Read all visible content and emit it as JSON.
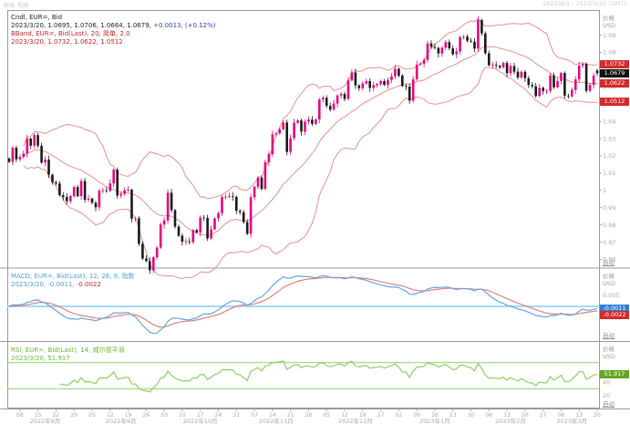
{
  "window": {
    "top_left_label": "图表 视图",
    "top_right_label": "2022/8/3 - 2023/3/20 (GMT)"
  },
  "legends": {
    "candle": {
      "line1": "Cndl, EUR=, Bid",
      "line2_black": "2023/3/20, 1.0695, 1.0706, 1.0664, 1.0679, ",
      "line2_blue": "+0.0013, (+0.12%)",
      "line3": "BBand, EUR=, Bid(Last), 20, 简单, 2.0",
      "line4": "2023/3/20, 1.0732, 1.0622, 1.0512"
    },
    "macd": {
      "line1": "MACD, EUR=, Bid(Last), 12, 26, 9, 指数",
      "line2_blue": "2023/3/20, -0.0011, ",
      "line2_red": "-0.0022"
    },
    "rsi": {
      "line1": "RSI, EUR=, Bid(Last), 14, 威尔德平滑",
      "line2": "2023/3/20, 51.917"
    }
  },
  "axis": {
    "price_header_1": "价格",
    "price_header_2": "USD",
    "auto_label": "自动"
  },
  "badges": {
    "bb_upper": "1.0732",
    "last": "1.0679",
    "bb_mid": "1.0622",
    "bb_lower": "1.0512",
    "macd": "-0.0011",
    "signal": "-0.0022",
    "rsi": "51.917"
  },
  "chart_data": {
    "type": "candlestick",
    "instrument": "EUR=",
    "quote_side": "Bid",
    "interval": "daily",
    "date_range": "2022/8/3 - 2023/3/20 (GMT)",
    "panels": [
      "price+bollinger",
      "macd",
      "rsi"
    ],
    "last_candle": {
      "date": "2023/3/20",
      "open": 1.0695,
      "high": 1.0706,
      "low": 1.0664,
      "close": 1.0679,
      "change": "+0.0013",
      "change_pct": "+0.12%"
    },
    "bollinger": {
      "period": 20,
      "stddev": 2.0,
      "upper": 1.0732,
      "middle": 1.0622,
      "lower": 1.0512,
      "date": "2023/3/20"
    },
    "macd": {
      "fast": 12,
      "slow": 26,
      "signal_period": 9,
      "value": -0.0011,
      "signal": -0.0022,
      "date": "2023/3/20"
    },
    "rsi": {
      "period": 14,
      "value": 51.917,
      "levels": [
        70,
        30
      ],
      "date": "2023/3/20"
    },
    "closes": [
      1.0165,
      1.0247,
      1.018,
      1.0193,
      1.0213,
      1.03,
      1.0259,
      1.032,
      1.0259,
      1.0161,
      1.0178,
      1.009,
      1.0047,
      1.004,
      0.9972,
      0.9962,
      0.9937,
      0.9967,
      1.0019,
      0.9966,
      1.0054,
      0.9945,
      0.9952,
      0.9928,
      0.9902,
      0.9998,
      1.0,
      0.9997,
      1.004,
      1.012,
      0.997,
      0.9979,
      0.9999,
      1.0004,
      0.9836,
      0.9838,
      0.969,
      0.9605,
      0.959,
      0.9536,
      0.9612,
      0.9668,
      0.9802,
      0.9826,
      0.9986,
      0.9885,
      0.979,
      0.9737,
      0.9702,
      0.9705,
      0.97,
      0.977,
      0.9756,
      0.9842,
      0.984,
      0.9721,
      0.9774,
      0.9837,
      0.9867,
      0.9961,
      0.9963,
      0.9966,
      0.9962,
      0.9881,
      0.9873,
      0.9816,
      0.9748,
      0.996,
      1.0021,
      1.0074,
      1.0009,
      1.0163,
      1.021,
      1.0325,
      1.0331,
      1.0354,
      1.0393,
      1.0223,
      1.0302,
      1.0392,
      1.0405,
      1.034,
      1.0398,
      1.041,
      1.0385,
      1.0411,
      1.0527,
      1.0537,
      1.049,
      1.0468,
      1.0503,
      1.055,
      1.0559,
      1.053,
      1.0637,
      1.0683,
      1.0608,
      1.0592,
      1.062,
      1.0633,
      1.0594,
      1.061,
      1.0617,
      1.0633,
      1.0612,
      1.064,
      1.0661,
      1.0705,
      1.0665,
      1.0605,
      1.0602,
      1.052,
      1.0644,
      1.0729,
      1.0734,
      1.0756,
      1.0852,
      1.0832,
      1.0826,
      1.0793,
      1.0827,
      1.0859,
      1.0823,
      1.0789,
      1.0805,
      1.0889,
      1.0891,
      1.0867,
      1.0862,
      1.0822,
      1.0987,
      1.091,
      1.0795,
      1.0725,
      1.0727,
      1.0722,
      1.0713,
      1.0738,
      1.0679,
      1.0721,
      1.0688,
      1.0654,
      1.0687,
      1.065,
      1.0611,
      1.0603,
      1.0547,
      1.0595,
      1.0576,
      1.0577,
      1.0665,
      1.0597,
      1.0634,
      1.068,
      1.0549,
      1.0545,
      1.0582,
      1.0643,
      1.0724,
      1.0733,
      1.0577,
      1.0611,
      1.0665,
      1.0679
    ],
    "price_axis": {
      "min": 0.956,
      "max": 1.104,
      "ticks": [
        [
          1.09,
          "1.09"
        ],
        [
          1.08,
          "1.08"
        ],
        [
          1.07,
          "1.07"
        ],
        [
          1.06,
          "1.06"
        ],
        [
          1.05,
          "1.05"
        ],
        [
          1.04,
          "1.04"
        ],
        [
          1.03,
          "1.03"
        ],
        [
          1.02,
          "1.02"
        ],
        [
          1.01,
          "1.01"
        ],
        [
          1.0,
          "1"
        ],
        [
          0.99,
          "0.99"
        ],
        [
          0.98,
          "0.98"
        ],
        [
          0.97,
          "0.97"
        ],
        [
          0.96,
          "0.96"
        ]
      ]
    },
    "macd_axis": {
      "ticks": [
        [
          0.005,
          "0.005"
        ],
        [
          -0.005,
          "-0.005"
        ]
      ]
    },
    "rsi_axis": {
      "min": 0,
      "max": 100,
      "ticks": [
        [
          40,
          "40"
        ],
        [
          20,
          "20"
        ]
      ]
    },
    "x_ticks": [
      [
        3,
        "08"
      ],
      [
        8,
        "15"
      ],
      [
        13,
        "22"
      ],
      [
        18,
        "29"
      ],
      [
        23,
        "05"
      ],
      [
        28,
        "12"
      ],
      [
        33,
        "19"
      ],
      [
        38,
        "26"
      ],
      [
        43,
        "03"
      ],
      [
        48,
        "10"
      ],
      [
        53,
        "17"
      ],
      [
        58,
        "24"
      ],
      [
        63,
        "31"
      ],
      [
        68,
        "07"
      ],
      [
        73,
        "14"
      ],
      [
        78,
        "21"
      ],
      [
        83,
        "28"
      ],
      [
        88,
        "05"
      ],
      [
        93,
        "12"
      ],
      [
        98,
        "19"
      ],
      [
        103,
        "27"
      ],
      [
        108,
        "02"
      ],
      [
        113,
        "09"
      ],
      [
        118,
        "16"
      ],
      [
        123,
        "23"
      ],
      [
        128,
        "30"
      ],
      [
        133,
        "06"
      ],
      [
        138,
        "13"
      ],
      [
        143,
        "20"
      ],
      [
        148,
        "27"
      ],
      [
        153,
        "06"
      ],
      [
        158,
        "13"
      ],
      [
        163,
        "20"
      ]
    ],
    "x_months": [
      [
        10,
        "2022年8月"
      ],
      [
        31,
        "2022年9月"
      ],
      [
        53,
        "2022年10月"
      ],
      [
        74,
        "2022年11月"
      ],
      [
        96,
        "2022年12月"
      ],
      [
        118,
        "2023年1月"
      ],
      [
        139,
        "2023年2月"
      ],
      [
        156,
        "2023年3月"
      ]
    ],
    "colors": {
      "up": "#e5067e",
      "down": "#1a1a1a",
      "band": "#e89090",
      "macd_line": "#5fa8dc",
      "signal_line": "#e08080",
      "zero_line": "#a6d9f2",
      "rsi_line": "#8ccf63",
      "rsi_levels": "#a5dd8a",
      "frame": "#9a9a9a",
      "tick_text": "#a8a8a8",
      "badge_red": "#d42a2a",
      "badge_blue": "#2f7ed8",
      "badge_green": "#63a524",
      "badge_black": "#111111"
    }
  }
}
